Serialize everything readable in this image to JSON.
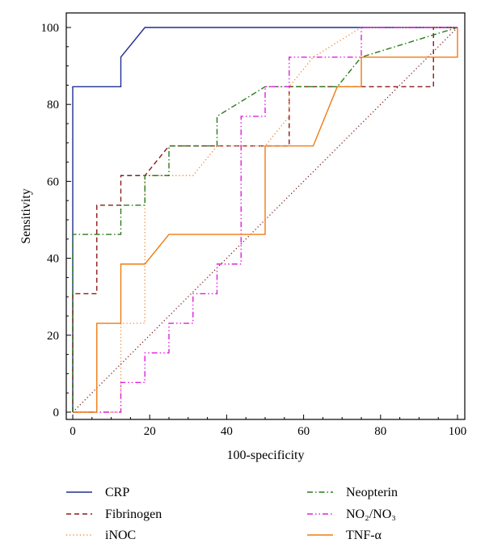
{
  "chart_data": {
    "type": "line",
    "title": "",
    "xlabel": "100-specificity",
    "ylabel": "Sensitivity",
    "xlim": [
      0,
      100
    ],
    "ylim": [
      0,
      100
    ],
    "xticks": [
      0,
      20,
      40,
      60,
      80,
      100
    ],
    "yticks": [
      0,
      20,
      40,
      60,
      80,
      100
    ],
    "x_tick_labels": [
      "0",
      "20",
      "40",
      "60",
      "80",
      "100"
    ],
    "y_tick_labels": [
      "0",
      "20",
      "40",
      "60",
      "80",
      "100"
    ],
    "grid": false,
    "legend_position": "bottom",
    "reference_line": {
      "x": [
        0,
        100
      ],
      "y": [
        0,
        100
      ],
      "color": "#7a1a1a",
      "style": "dotted"
    },
    "series": [
      {
        "name": "CRP",
        "color": "#1f2f8f",
        "style": "solid",
        "x": [
          0,
          0,
          12.5,
          12.5,
          18.75,
          100
        ],
        "y": [
          0,
          84.6,
          84.6,
          92.3,
          100,
          100
        ]
      },
      {
        "name": "Fibrinogen",
        "color": "#8b1a1a",
        "style": "dashed",
        "x": [
          0,
          0,
          6.25,
          6.25,
          12.5,
          12.5,
          18.75,
          25,
          56.25,
          56.25,
          93.75,
          93.75,
          100
        ],
        "y": [
          0,
          30.8,
          30.8,
          53.8,
          53.8,
          61.5,
          61.5,
          69.2,
          69.2,
          84.6,
          84.6,
          100,
          100
        ]
      },
      {
        "name": "iNOC",
        "color": "#f08a3c",
        "style": "dotted",
        "x": [
          0,
          12.5,
          12.5,
          18.75,
          18.75,
          31.25,
          37.5,
          50,
          56.25,
          56.25,
          62.5,
          75,
          100
        ],
        "y": [
          0,
          0,
          23.1,
          23.1,
          61.5,
          61.5,
          69.2,
          69.2,
          76.9,
          84.6,
          92.3,
          100,
          100
        ]
      },
      {
        "name": "Neopterin",
        "color": "#2a7a1a",
        "style": "dashdot",
        "x": [
          0,
          0,
          12.5,
          12.5,
          18.75,
          18.75,
          25,
          25,
          37.5,
          37.5,
          50,
          68.75,
          75,
          100
        ],
        "y": [
          0,
          46.2,
          46.2,
          53.8,
          53.8,
          61.5,
          61.5,
          69.2,
          69.2,
          76.9,
          84.6,
          84.6,
          92.3,
          100
        ]
      },
      {
        "name": "NO2/NO3",
        "display_name": "NO₂/NO₃",
        "color": "#e020e0",
        "style": "dashdotdot",
        "x": [
          0,
          12.5,
          12.5,
          18.75,
          18.75,
          25,
          25,
          31.25,
          31.25,
          37.5,
          37.5,
          43.75,
          43.75,
          50,
          50,
          56.25,
          56.25,
          75,
          75,
          100
        ],
        "y": [
          0,
          0,
          7.7,
          7.7,
          15.4,
          15.4,
          23.1,
          23.1,
          30.8,
          30.8,
          38.5,
          38.5,
          76.9,
          76.9,
          84.6,
          84.6,
          92.3,
          92.3,
          100,
          100
        ]
      },
      {
        "name": "TNF-α",
        "color": "#f07a10",
        "style": "solid",
        "x": [
          0,
          6.25,
          6.25,
          12.5,
          12.5,
          18.75,
          25,
          50,
          50,
          62.5,
          68.75,
          75,
          75,
          100,
          100
        ],
        "y": [
          0,
          0,
          23.1,
          23.1,
          38.5,
          38.5,
          46.2,
          46.2,
          69.2,
          69.2,
          84.6,
          84.6,
          92.3,
          92.3,
          100
        ]
      }
    ]
  }
}
